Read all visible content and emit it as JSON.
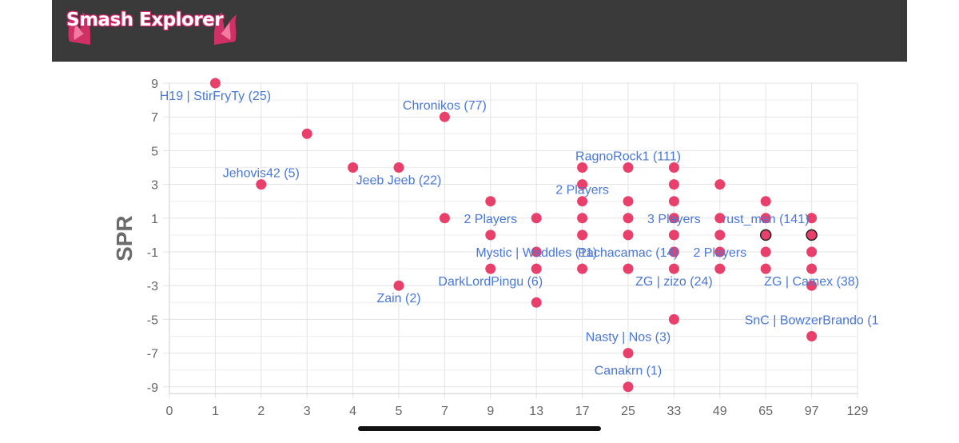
{
  "app": {
    "title": "Smash Explorer"
  },
  "colors": {
    "header_bg": "#3a3a3b",
    "brand": "#e0306a",
    "marker": "#e8406a",
    "label": "#4a78d8",
    "grid": "#e3e3e3"
  },
  "chart_data": {
    "type": "scatter",
    "title": "",
    "xlabel": "",
    "ylabel": "SPR",
    "x_scale": "categorical-index",
    "x_ticks": [
      "0",
      "1",
      "2",
      "3",
      "4",
      "5",
      "7",
      "9",
      "13",
      "17",
      "25",
      "33",
      "49",
      "65",
      "97",
      "129"
    ],
    "y_ticks": [
      9,
      7,
      5,
      3,
      1,
      -1,
      -3,
      -5,
      -7,
      -9
    ],
    "ylim": [
      -9,
      9
    ],
    "grid": true,
    "points": [
      {
        "x": "1",
        "y": 9
      },
      {
        "x": "2",
        "y": 3
      },
      {
        "x": "3",
        "y": 6
      },
      {
        "x": "4",
        "y": 4
      },
      {
        "x": "5",
        "y": 4
      },
      {
        "x": "5",
        "y": -3
      },
      {
        "x": "7",
        "y": 7
      },
      {
        "x": "7",
        "y": 1
      },
      {
        "x": "9",
        "y": 2
      },
      {
        "x": "9",
        "y": 0
      },
      {
        "x": "9",
        "y": -2
      },
      {
        "x": "13",
        "y": 1
      },
      {
        "x": "13",
        "y": -1
      },
      {
        "x": "13",
        "y": -2
      },
      {
        "x": "13",
        "y": -4
      },
      {
        "x": "17",
        "y": 4
      },
      {
        "x": "17",
        "y": 3
      },
      {
        "x": "17",
        "y": 2
      },
      {
        "x": "17",
        "y": 1
      },
      {
        "x": "17",
        "y": 0
      },
      {
        "x": "17",
        "y": -2
      },
      {
        "x": "25",
        "y": 4
      },
      {
        "x": "25",
        "y": 2
      },
      {
        "x": "25",
        "y": 1
      },
      {
        "x": "25",
        "y": 0
      },
      {
        "x": "25",
        "y": -2
      },
      {
        "x": "25",
        "y": -7
      },
      {
        "x": "25",
        "y": -9
      },
      {
        "x": "33",
        "y": 4
      },
      {
        "x": "33",
        "y": 3
      },
      {
        "x": "33",
        "y": 2
      },
      {
        "x": "33",
        "y": 1
      },
      {
        "x": "33",
        "y": 0
      },
      {
        "x": "33",
        "y": -1
      },
      {
        "x": "33",
        "y": -2
      },
      {
        "x": "33",
        "y": -5
      },
      {
        "x": "49",
        "y": 3
      },
      {
        "x": "49",
        "y": 1
      },
      {
        "x": "49",
        "y": 0
      },
      {
        "x": "49",
        "y": -1
      },
      {
        "x": "49",
        "y": -2
      },
      {
        "x": "65",
        "y": 2
      },
      {
        "x": "65",
        "y": 1
      },
      {
        "x": "65",
        "y": 0,
        "highlight": true
      },
      {
        "x": "65",
        "y": -1
      },
      {
        "x": "65",
        "y": -2
      },
      {
        "x": "97",
        "y": 1
      },
      {
        "x": "97",
        "y": 0,
        "highlight": true
      },
      {
        "x": "97",
        "y": -1
      },
      {
        "x": "97",
        "y": -2
      },
      {
        "x": "97",
        "y": -3
      },
      {
        "x": "97",
        "y": -6
      }
    ],
    "annotations": [
      {
        "text": "H19 | StirFryTy (25)",
        "x": "1",
        "y": 9,
        "align": "below"
      },
      {
        "text": "Chronikos (77)",
        "x": "7",
        "y": 7,
        "align": "above"
      },
      {
        "text": "RagnoRock1 (111)",
        "x": "25",
        "y": 4,
        "align": "above"
      },
      {
        "text": "Jehovis42 (5)",
        "x": "2",
        "y": 3,
        "align": "above"
      },
      {
        "text": "Jeeb Jeeb (22)",
        "x": "5",
        "y": 4,
        "align": "below"
      },
      {
        "text": "2 Players",
        "x": "17",
        "y": 2,
        "align": "above"
      },
      {
        "text": "2 Players",
        "x": "9",
        "y": 1,
        "align": "middle"
      },
      {
        "text": "3 Players",
        "x": "33",
        "y": 1,
        "align": "middle"
      },
      {
        "text": "rust_man (141)",
        "x": "65",
        "y": 1,
        "align": "middle"
      },
      {
        "text": "Mystic | Waddles (11)",
        "x": "13",
        "y": -1,
        "align": "middle"
      },
      {
        "text": "Pachacamac (14)",
        "x": "25",
        "y": -1,
        "align": "middle"
      },
      {
        "text": "2 Players",
        "x": "49",
        "y": -1,
        "align": "middle"
      },
      {
        "text": "ZG | Camex (38)",
        "x": "97",
        "y": -2,
        "align": "below"
      },
      {
        "text": "DarkLordPingu (6)",
        "x": "9",
        "y": -2,
        "align": "below"
      },
      {
        "text": "ZG | zizo (24)",
        "x": "33",
        "y": -2,
        "align": "below"
      },
      {
        "text": "Zain (2)",
        "x": "5",
        "y": -3,
        "align": "below"
      },
      {
        "text": "SnC | BowzerBrando (1",
        "x": "97",
        "y": -5,
        "align": "middle"
      },
      {
        "text": "Nasty | Nos (3)",
        "x": "25",
        "y": -6,
        "align": "middle"
      },
      {
        "text": "Canakrn (1)",
        "x": "25",
        "y": -8,
        "align": "middle"
      }
    ]
  }
}
